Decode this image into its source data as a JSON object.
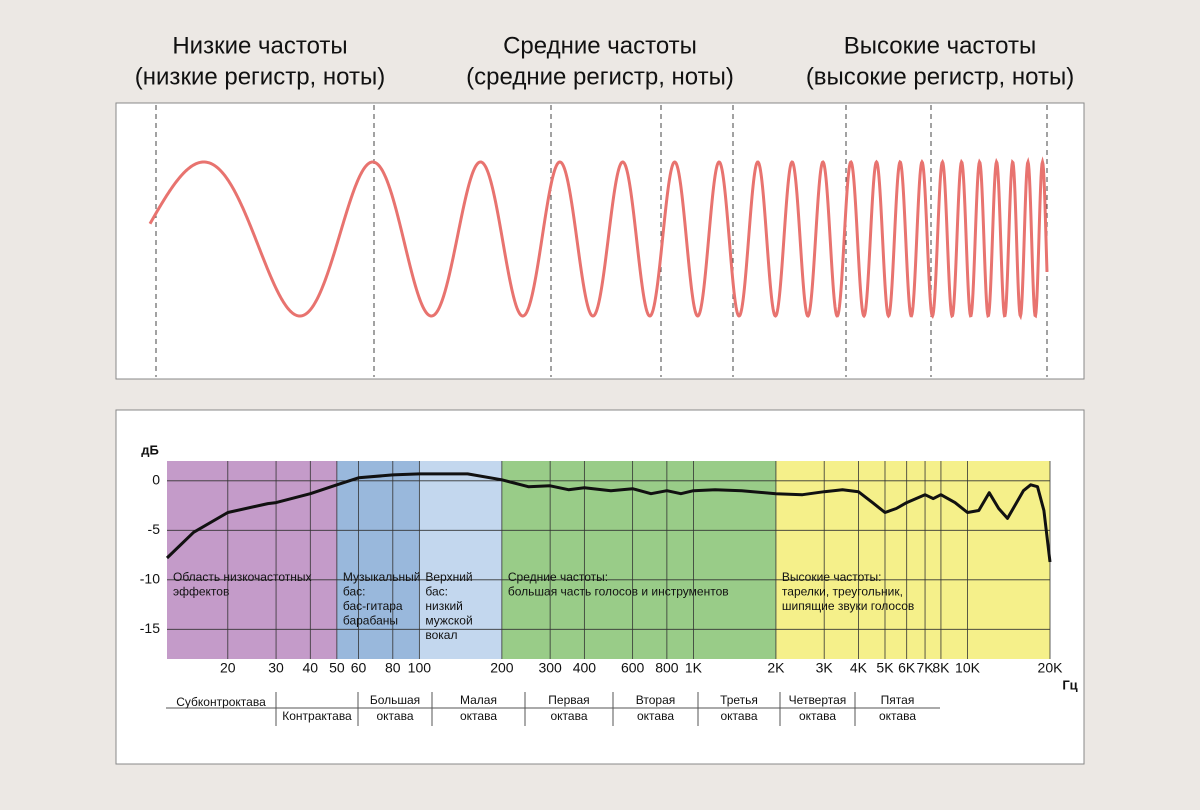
{
  "header": {
    "columns": [
      {
        "title": "Низкие частоты",
        "subtitle": "(низкие регистр, ноты)"
      },
      {
        "title": "Средние частоты",
        "subtitle": "(средние регистр, ноты)"
      },
      {
        "title": "Высокие частоты",
        "subtitle": "(высокие регистр, ноты)"
      }
    ]
  },
  "chart_data": {
    "type": "line",
    "y_label": "дБ",
    "x_label": "Гц",
    "x_scale": "log",
    "grid": true,
    "xlim": [
      12,
      20000
    ],
    "ylim": [
      -18,
      2
    ],
    "xticks": [
      20,
      30,
      40,
      50,
      60,
      80,
      100,
      200,
      300,
      400,
      600,
      800,
      {
        "value": 1000,
        "label": "1K"
      },
      {
        "value": 2000,
        "label": "2K"
      },
      {
        "value": 3000,
        "label": "3K"
      },
      {
        "value": 4000,
        "label": "4K"
      },
      {
        "value": 5000,
        "label": "5K"
      },
      {
        "value": 6000,
        "label": "6K"
      },
      {
        "value": 7000,
        "label": "7K"
      },
      {
        "value": 8000,
        "label": "8K"
      },
      {
        "value": 10000,
        "label": "10K"
      },
      {
        "value": 20000,
        "label": "20K"
      }
    ],
    "yticks": [
      0,
      -5,
      -10,
      -15
    ],
    "bands": [
      {
        "label": [
          "Область низкочастотных",
          "эффектов"
        ],
        "from": 12,
        "to": 50,
        "color": "#c49bc9"
      },
      {
        "label": [
          "Музыкальный",
          "бас:",
          "бас-гитара",
          "барабаны"
        ],
        "from": 50,
        "to": 100,
        "color": "#99b8dc"
      },
      {
        "label": [
          "Верхний",
          "бас:",
          "низкий",
          "мужской",
          "вокал"
        ],
        "from": 100,
        "to": 200,
        "color": "#c3d7ee"
      },
      {
        "label": [
          "Средние частоты:",
          "большая часть голосов и инструментов"
        ],
        "from": 200,
        "to": 2000,
        "color": "#99cc88"
      },
      {
        "label": [
          "Высокие частоты:",
          "тарелки, треугольник,",
          "шипящие звуки голосов"
        ],
        "from": 2000,
        "to": 20000,
        "color": "#f5f08a"
      }
    ],
    "series": [
      {
        "color": "#111111",
        "x": [
          12,
          15,
          20,
          28,
          30,
          40,
          50,
          60,
          80,
          100,
          150,
          200,
          250,
          300,
          350,
          400,
          500,
          600,
          700,
          800,
          900,
          1000,
          1200,
          1500,
          2000,
          2500,
          3000,
          3500,
          4000,
          4500,
          5000,
          5500,
          6000,
          7000,
          7500,
          8000,
          9000,
          10000,
          11000,
          12000,
          13000,
          14000,
          16000,
          17000,
          18000,
          19000,
          20000
        ],
        "values": [
          -7.8,
          -5.2,
          -3.2,
          -2.3,
          -2.2,
          -1.3,
          -0.4,
          0.3,
          0.6,
          0.7,
          0.7,
          0.1,
          -0.6,
          -0.5,
          -0.9,
          -0.7,
          -1.0,
          -0.8,
          -1.3,
          -1.0,
          -1.3,
          -1.0,
          -0.9,
          -1.0,
          -1.3,
          -1.4,
          -1.1,
          -0.9,
          -1.1,
          -2.2,
          -3.2,
          -2.8,
          -2.2,
          -1.4,
          -1.8,
          -1.4,
          -2.2,
          -3.2,
          -3.0,
          -1.2,
          -2.8,
          -3.8,
          -1.0,
          -0.4,
          -0.6,
          -3.0,
          -8.2
        ]
      }
    ]
  },
  "octave_table": [
    [
      "Субконтроктава"
    ],
    [
      "Контрактава"
    ],
    [
      "Большая",
      "октава"
    ],
    [
      "Малая",
      "октава"
    ],
    [
      "Первая",
      "октава"
    ],
    [
      "Вторая",
      "октава"
    ],
    [
      "Третья",
      "октава"
    ],
    [
      "Четвертая",
      "октава"
    ],
    [
      "Пятая",
      "октава"
    ]
  ]
}
